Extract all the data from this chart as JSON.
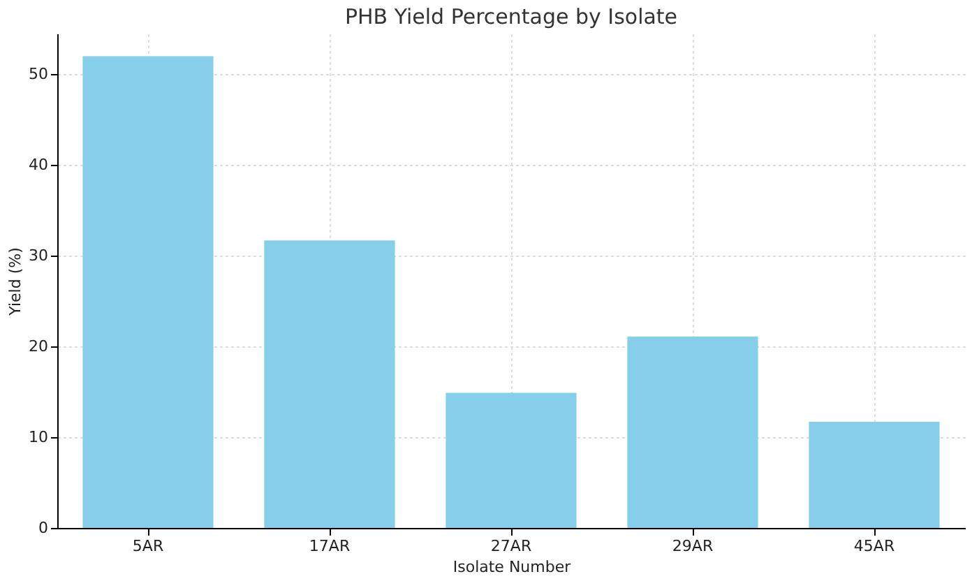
{
  "chart_data": {
    "type": "bar",
    "title": "PHB Yield Percentage by Isolate",
    "xlabel": "Isolate Number",
    "ylabel": "Yield (%)",
    "categories": [
      "5AR",
      "17AR",
      "27AR",
      "29AR",
      "45AR"
    ],
    "values": [
      52.0,
      31.7,
      14.9,
      21.1,
      11.7
    ],
    "color": "#87ceeb",
    "ylim": [
      0,
      54.5
    ],
    "yticks": [
      0,
      10,
      20,
      30,
      40,
      50
    ],
    "grid": true
  }
}
